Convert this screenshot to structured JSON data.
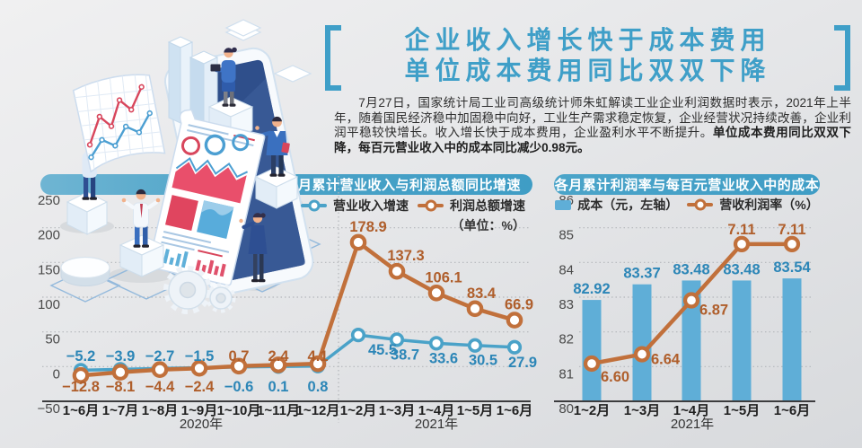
{
  "header": {
    "title_line1": "企业收入增长快于成本费用",
    "title_line2": "单位成本费用同比双双下降",
    "intro_text": "7月27日，国家统计局工业司高级统计师朱虹解读工业企业利润数据时表示，2021年上半年，随着国民经济稳中加固稳中向好，工业生产需求稳定恢复，企业经营状况持续改善，企业利润平稳较快增长。收入增长快于成本费用，企业盈利水平不断提升。",
    "intro_bold": "单位成本费用同比双双下降，每百元营业收入中的成本同比减少0.98元。"
  },
  "colors": {
    "banner_blue": "#3F9DC5",
    "title_blue": "#3F9FC8",
    "revenue_line": "#4AA2C8",
    "profit_line": "#C1703B",
    "bar_fill": "#5FAED7",
    "blue_label": "#2C86B7",
    "orange_label": "#AF5E2B",
    "axis": "#3C3C3E",
    "grid": "#B4B7BB"
  },
  "chart_data": [
    {
      "type": "line",
      "title": "各月累计营业收入与利润总额同比增速",
      "unit_label": "（单位：%）",
      "categories": [
        "1~6月",
        "1~7月",
        "1~8月",
        "1~9月",
        "1~10月",
        "1~11月",
        "1~12月",
        "1~2月",
        "1~3月",
        "1~4月",
        "1~5月",
        "1~6月"
      ],
      "x_year_labels": [
        {
          "text": "2020年",
          "under": "1~9月"
        },
        {
          "text": "2021年",
          "under": "1~4月"
        }
      ],
      "ylim": [
        -50,
        250
      ],
      "yticks": [
        250,
        200,
        150,
        100,
        50,
        0,
        -50
      ],
      "grid": "dotted-horizontal",
      "legend_position": "top-right",
      "series": [
        {
          "name": "营业收入增速",
          "color": "#4AA2C8",
          "values": [
            -5.2,
            -3.9,
            -2.7,
            -1.5,
            -0.6,
            0.1,
            0.8,
            45.5,
            38.7,
            33.6,
            30.5,
            27.9
          ]
        },
        {
          "name": "利润总额增速",
          "color": "#C1703B",
          "values": [
            -12.8,
            -8.1,
            -4.4,
            -2.4,
            0.7,
            2.4,
            4.1,
            178.9,
            137.3,
            106.1,
            83.4,
            66.9
          ]
        }
      ]
    },
    {
      "type": "bar+line",
      "title": "各月累计利润率与每百元营业收入中的成本",
      "categories": [
        "1~2月",
        "1~3月",
        "1~4月",
        "1~5月",
        "1~6月"
      ],
      "x_year_label": "2021年",
      "left_axis": {
        "ylim": [
          80,
          86
        ],
        "yticks": [
          86,
          85,
          84,
          83,
          82,
          81,
          80
        ]
      },
      "grid": "dotted-horizontal",
      "series": [
        {
          "name": "成本（元，左轴）",
          "type": "bar",
          "color": "#5FAED7",
          "label_decimals": 2,
          "values": [
            82.92,
            83.37,
            83.48,
            83.48,
            83.54
          ]
        },
        {
          "name": "营收利润率（%）",
          "type": "line",
          "color": "#C1703B",
          "label_decimals": 2,
          "values": [
            6.6,
            6.64,
            6.87,
            7.11,
            7.11
          ]
        }
      ]
    }
  ]
}
